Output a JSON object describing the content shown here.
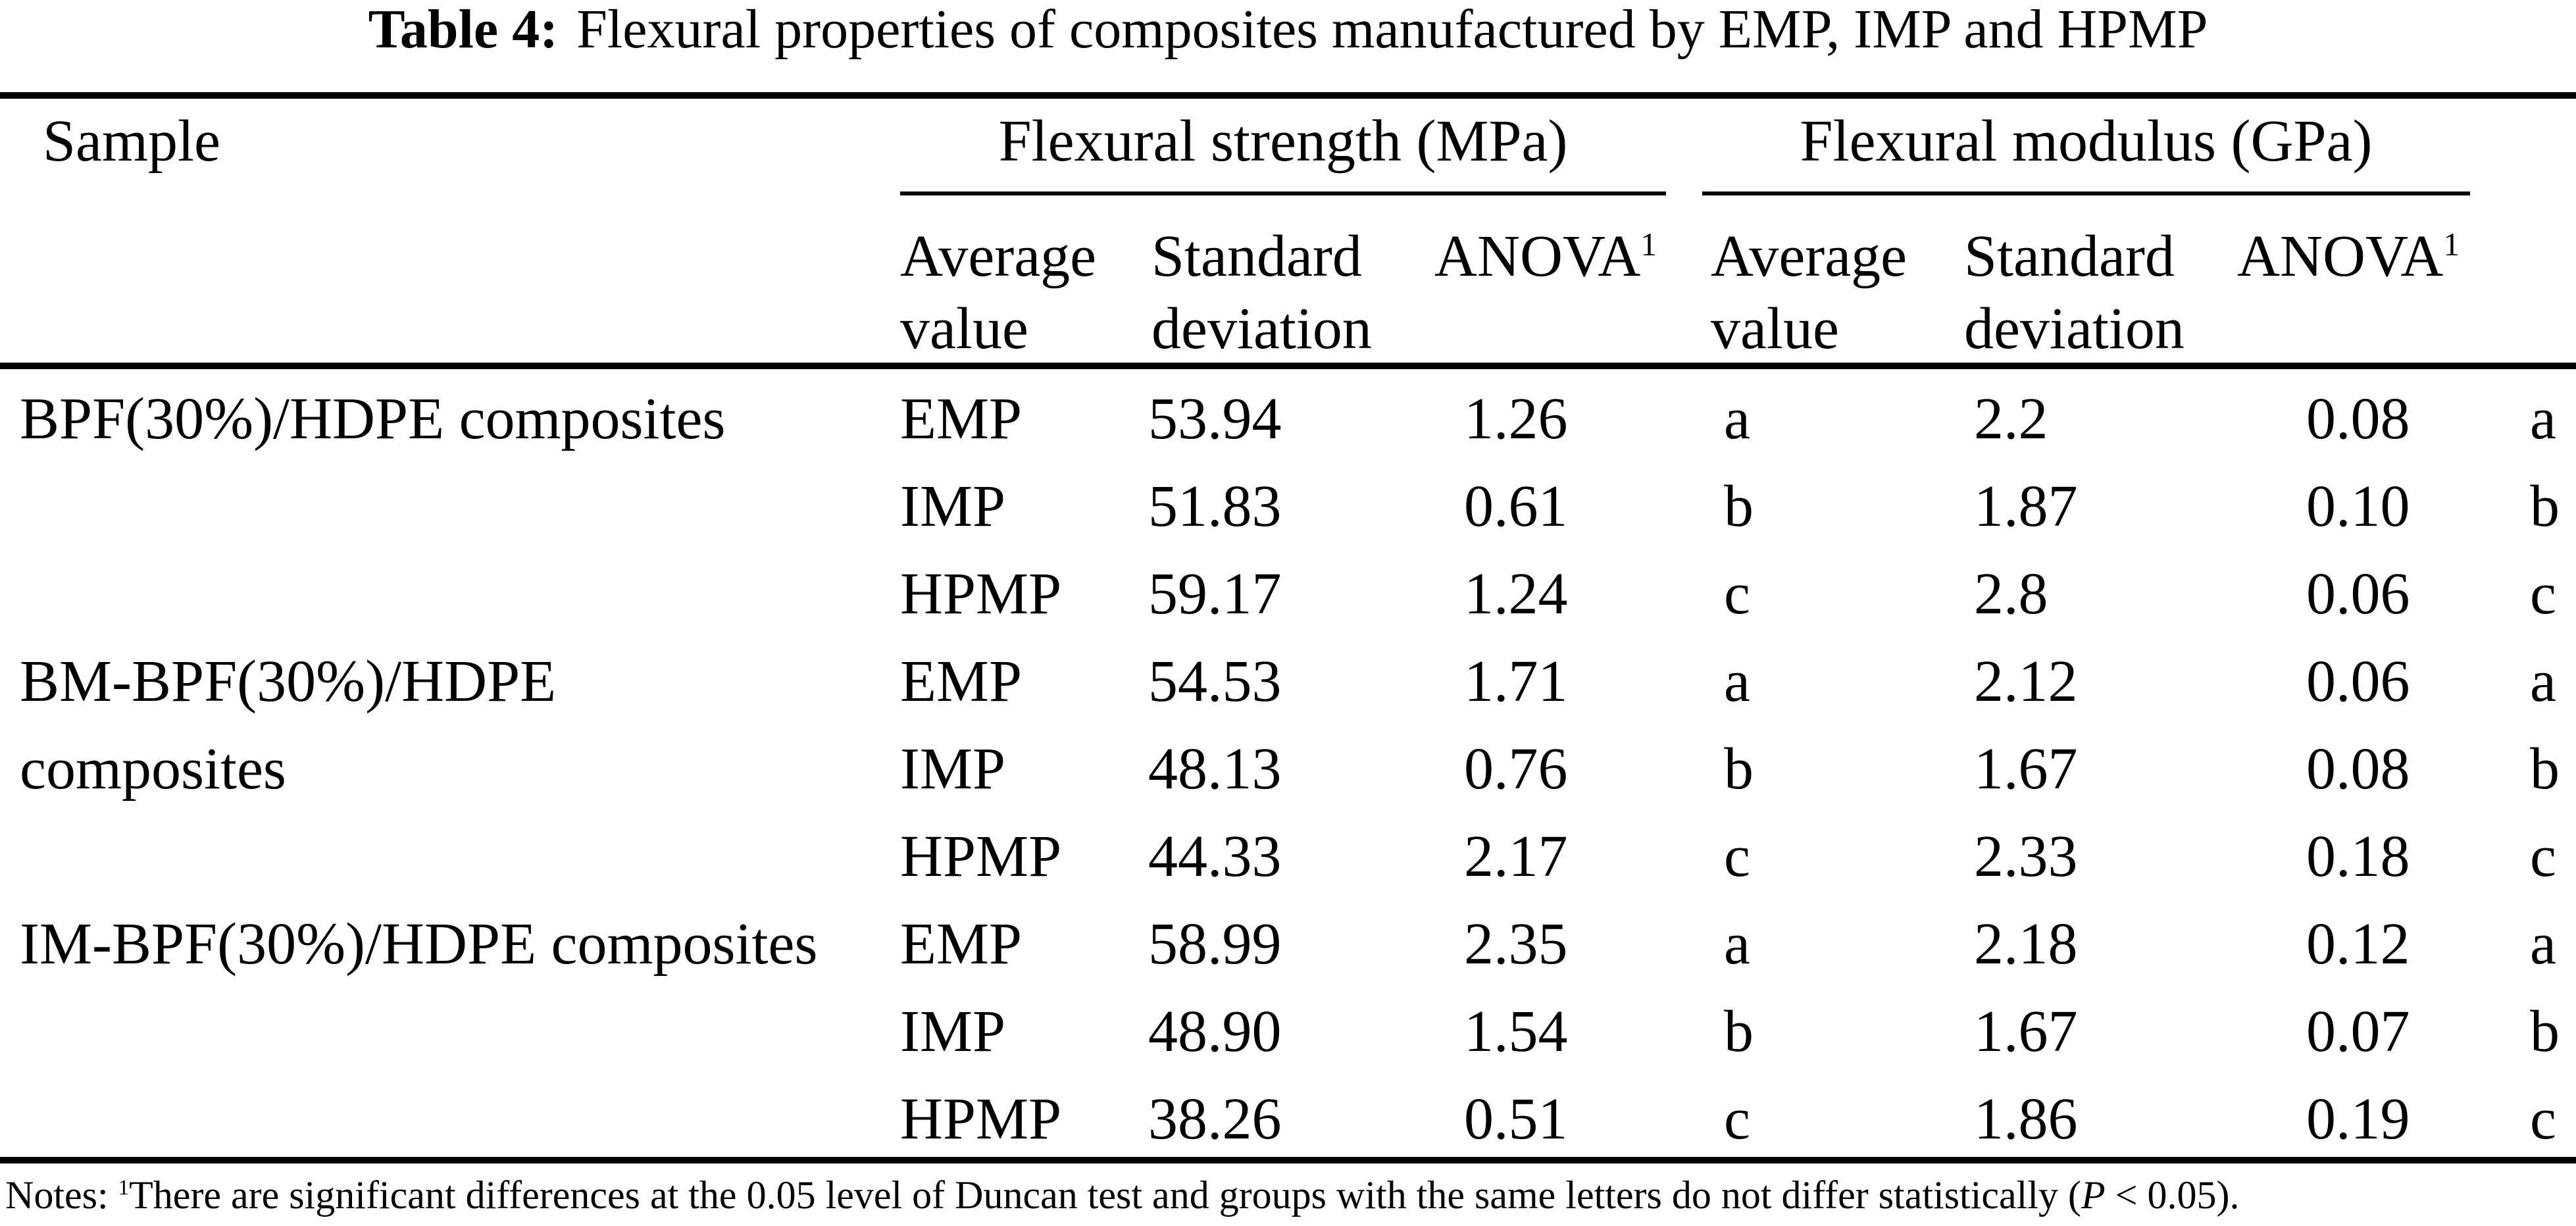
{
  "title": {
    "label": "Table 4:",
    "text": "Flexural properties of composites manufactured by EMP, IMP and HPMP"
  },
  "columns": {
    "sample": "Sample",
    "strength_group": "Flexural strength (MPa)",
    "modulus_group": "Flexural modulus (GPa)",
    "avg_line1": "Average",
    "avg_line2": "value",
    "sd_line1": "Standard",
    "sd_line2": "deviation",
    "anova": "ANOVA",
    "anova_sup": "1"
  },
  "groups": [
    {
      "sample": "BPF(30%)/HDPE composites",
      "rows": [
        {
          "process": "EMP",
          "strength_avg": "53.94",
          "strength_sd": "1.26",
          "strength_anova": "a",
          "modulus_avg": "2.2",
          "modulus_sd": "0.08",
          "modulus_anova": "a"
        },
        {
          "process": "IMP",
          "strength_avg": "51.83",
          "strength_sd": "0.61",
          "strength_anova": "b",
          "modulus_avg": "1.87",
          "modulus_sd": "0.10",
          "modulus_anova": "b"
        },
        {
          "process": "HPMP",
          "strength_avg": "59.17",
          "strength_sd": "1.24",
          "strength_anova": "c",
          "modulus_avg": "2.8",
          "modulus_sd": "0.06",
          "modulus_anova": "c"
        }
      ]
    },
    {
      "sample": "BM-BPF(30%)/HDPE composites",
      "rows": [
        {
          "process": "EMP",
          "strength_avg": "54.53",
          "strength_sd": "1.71",
          "strength_anova": "a",
          "modulus_avg": "2.12",
          "modulus_sd": "0.06",
          "modulus_anova": "a"
        },
        {
          "process": "IMP",
          "strength_avg": "48.13",
          "strength_sd": "0.76",
          "strength_anova": "b",
          "modulus_avg": "1.67",
          "modulus_sd": "0.08",
          "modulus_anova": "b"
        },
        {
          "process": "HPMP",
          "strength_avg": "44.33",
          "strength_sd": "2.17",
          "strength_anova": "c",
          "modulus_avg": "2.33",
          "modulus_sd": "0.18",
          "modulus_anova": "c"
        }
      ]
    },
    {
      "sample": "IM-BPF(30%)/HDPE composites",
      "rows": [
        {
          "process": "EMP",
          "strength_avg": "58.99",
          "strength_sd": "2.35",
          "strength_anova": "a",
          "modulus_avg": "2.18",
          "modulus_sd": "0.12",
          "modulus_anova": "a"
        },
        {
          "process": "IMP",
          "strength_avg": "48.90",
          "strength_sd": "1.54",
          "strength_anova": "b",
          "modulus_avg": "1.67",
          "modulus_sd": "0.07",
          "modulus_anova": "b"
        },
        {
          "process": "HPMP",
          "strength_avg": "38.26",
          "strength_sd": "0.51",
          "strength_anova": "c",
          "modulus_avg": "1.86",
          "modulus_sd": "0.19",
          "modulus_anova": "c"
        }
      ]
    }
  ],
  "notes": {
    "label": "Notes: ",
    "sup": "1",
    "text_before_p": "There are significant differences at the 0.05 level of Duncan test and groups with the same letters do not differ statistically (",
    "p": "P",
    "text_after_p": " < 0.05)."
  },
  "colors": {
    "text": "#000000",
    "background": "#ffffff",
    "rule": "#000000"
  }
}
